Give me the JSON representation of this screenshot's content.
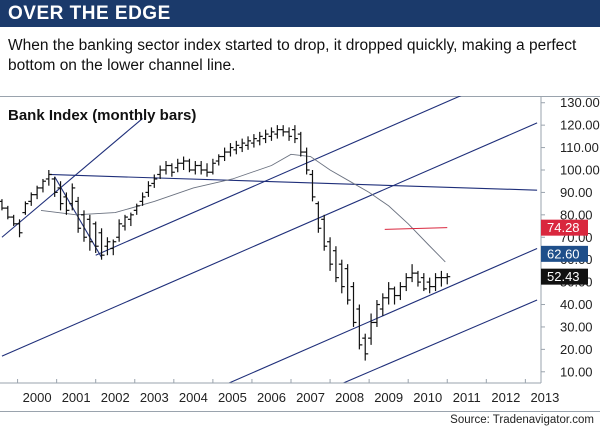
{
  "header": {
    "title": "OVER THE EDGE"
  },
  "subtitle": "When the banking sector index started to drop, it dropped quickly, making a perfect bottom on the lower channel line.",
  "source": "Source: Tradenavigator.com",
  "colors": {
    "header_bg": "#1b3a6b",
    "channel": "#1f2f7a",
    "moving_average": "#6b7280",
    "marker_red": "#d9273e",
    "marker_blue": "#1f4f8a",
    "marker_black": "#111111"
  },
  "chart_data": {
    "type": "bar",
    "title": "Bank Index (monthly bars)",
    "xlabel": "",
    "ylabel": "",
    "x_ticks": [
      "2000",
      "2001",
      "2002",
      "2003",
      "2004",
      "2005",
      "2006",
      "2007",
      "2008",
      "2009",
      "2010",
      "2011",
      "2012",
      "2013"
    ],
    "y_ticks": [
      "10.00",
      "20.00",
      "30.00",
      "40.00",
      "50.00",
      "60.00",
      "70.00",
      "80.00",
      "90.00",
      "100.00",
      "110.00",
      "120.00",
      "130.00"
    ],
    "ylim": [
      5,
      133
    ],
    "xlim": [
      1999.55,
      2013.4
    ],
    "grid": false,
    "price_markers": [
      {
        "label": "74.28",
        "value": 74.28,
        "color": "#d9273e"
      },
      {
        "label": "62.60",
        "value": 62.6,
        "color": "#1f4f8a"
      },
      {
        "label": "52.43",
        "value": 52.43,
        "color": "#111111"
      }
    ],
    "series": [
      {
        "kind": "ohlc_bars",
        "x": [
          1999.6,
          1999.75,
          1999.9,
          2000.05,
          2000.2,
          2000.35,
          2000.5,
          2000.65,
          2000.8,
          2000.95,
          2001.1,
          2001.25,
          2001.4,
          2001.55,
          2001.7,
          2001.85,
          2002.0,
          2002.15,
          2002.3,
          2002.45,
          2002.6,
          2002.75,
          2002.9,
          2003.05,
          2003.2,
          2003.35,
          2003.5,
          2003.65,
          2003.8,
          2003.95,
          2004.1,
          2004.25,
          2004.4,
          2004.55,
          2004.7,
          2004.85,
          2005.0,
          2005.15,
          2005.3,
          2005.45,
          2005.6,
          2005.75,
          2005.9,
          2006.05,
          2006.2,
          2006.35,
          2006.5,
          2006.65,
          2006.8,
          2006.95,
          2007.1,
          2007.25,
          2007.4,
          2007.55,
          2007.7,
          2007.85,
          2008.0,
          2008.15,
          2008.3,
          2008.45,
          2008.6,
          2008.75,
          2008.9,
          2009.05,
          2009.2,
          2009.35,
          2009.5,
          2009.65,
          2009.8,
          2009.95,
          2010.1,
          2010.25,
          2010.4,
          2010.55,
          2010.7,
          2010.85,
          2011.0
        ],
        "high": [
          87,
          84,
          80,
          78,
          86,
          90,
          93,
          96,
          100,
          97,
          95,
          90,
          94,
          88,
          82,
          80,
          77,
          74,
          70,
          69,
          78,
          80,
          81,
          85,
          90,
          95,
          98,
          102,
          104,
          103,
          105,
          106,
          105,
          104,
          104,
          103,
          105,
          107,
          110,
          112,
          113,
          114,
          115,
          116,
          117,
          118,
          119,
          120,
          120,
          119,
          120,
          117,
          110,
          100,
          86,
          80,
          70,
          66,
          60,
          58,
          50,
          40,
          27,
          36,
          42,
          45,
          50,
          48,
          50,
          54,
          58,
          55,
          54,
          52,
          54,
          55,
          54
        ],
        "low": [
          82,
          78,
          75,
          70,
          80,
          84,
          87,
          90,
          93,
          88,
          82,
          80,
          82,
          72,
          68,
          64,
          63,
          60,
          62,
          62,
          68,
          73,
          75,
          80,
          84,
          88,
          92,
          96,
          98,
          97,
          99,
          100,
          99,
          98,
          98,
          97,
          98,
          102,
          104,
          106,
          107,
          108,
          109,
          110,
          111,
          112,
          113,
          114,
          115,
          113,
          112,
          106,
          98,
          86,
          72,
          64,
          55,
          50,
          45,
          40,
          30,
          20,
          15,
          22,
          30,
          35,
          40,
          40,
          42,
          46,
          50,
          48,
          46,
          45,
          46,
          48,
          49
        ],
        "open": [
          86,
          83,
          79,
          76,
          81,
          86,
          89,
          92,
          96,
          96,
          92,
          88,
          85,
          86,
          80,
          78,
          76,
          72,
          66,
          65,
          70,
          75,
          78,
          82,
          86,
          90,
          94,
          98,
          100,
          102,
          101,
          103,
          104,
          100,
          102,
          100,
          99,
          104,
          106,
          108,
          109,
          110,
          111,
          112,
          113,
          114,
          115,
          116,
          118,
          117,
          118,
          116,
          108,
          98,
          85,
          78,
          68,
          64,
          58,
          56,
          48,
          38,
          25,
          25,
          32,
          38,
          43,
          47,
          44,
          48,
          52,
          54,
          52,
          50,
          48,
          52,
          52
        ],
        "close": [
          83,
          79,
          76,
          72,
          85,
          89,
          92,
          95,
          98,
          90,
          85,
          82,
          92,
          74,
          70,
          68,
          66,
          62,
          68,
          68,
          76,
          79,
          80,
          84,
          88,
          93,
          96,
          100,
          102,
          99,
          103,
          104,
          100,
          102,
          100,
          99,
          103,
          106,
          108,
          110,
          111,
          112,
          113,
          114,
          115,
          116,
          117,
          118,
          117,
          115,
          114,
          108,
          100,
          88,
          74,
          66,
          58,
          52,
          48,
          42,
          32,
          22,
          18,
          32,
          40,
          43,
          47,
          44,
          48,
          52,
          54,
          50,
          47,
          48,
          52,
          52,
          52.43
        ]
      },
      {
        "kind": "moving_average",
        "x": [
          2000.6,
          2001.5,
          2002.5,
          2003.5,
          2004.5,
          2005.5,
          2006.5,
          2007.0,
          2007.5,
          2008.0,
          2008.5,
          2009.0,
          2009.5,
          2010.0,
          2010.5,
          2010.95
        ],
        "y": [
          82,
          80,
          81,
          86,
          92,
          96,
          102,
          107,
          106,
          100,
          95,
          90,
          84,
          76,
          67,
          59
        ]
      },
      {
        "kind": "channel_lines",
        "lines": [
          {
            "x": [
              1999.6,
              2003.2
            ],
            "y": [
              70,
              123
            ]
          },
          {
            "x": [
              2002.0,
              2013.3
            ],
            "y": [
              62,
              148
            ]
          },
          {
            "x": [
              2000.8,
              2013.3
            ],
            "y": [
              98,
              91
            ]
          },
          {
            "x": [
              1999.6,
              2013.3
            ],
            "y": [
              17,
              121
            ]
          },
          {
            "x": [
              2004.1,
              2013.3
            ],
            "y": [
              -5,
              65
            ]
          },
          {
            "x": [
              2007.0,
              2013.3
            ],
            "y": [
              -5,
              42
            ]
          },
          {
            "x": [
              2000.95,
              2002.15
            ],
            "y": [
              97,
              61
            ]
          }
        ]
      },
      {
        "kind": "reference_line",
        "x": [
          2009.4,
          2011.0
        ],
        "y": [
          73.5,
          74.28
        ]
      }
    ]
  }
}
